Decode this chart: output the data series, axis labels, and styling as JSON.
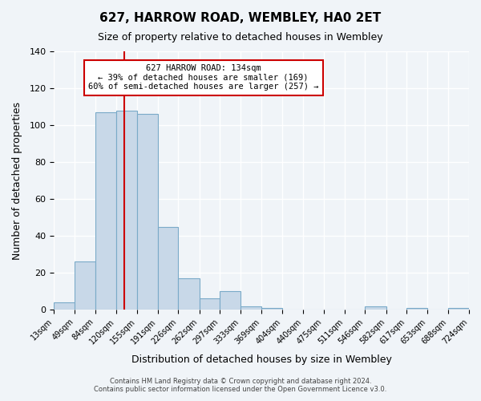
{
  "title": "627, HARROW ROAD, WEMBLEY, HA0 2ET",
  "subtitle": "Size of property relative to detached houses in Wembley",
  "xlabel": "Distribution of detached houses by size in Wembley",
  "ylabel": "Number of detached properties",
  "bar_color": "#c8d8e8",
  "bar_edge_color": "#7aaac8",
  "background_color": "#f0f4f8",
  "grid_color": "#ffffff",
  "bin_edges": [
    13,
    49,
    84,
    120,
    155,
    191,
    226,
    262,
    297,
    333,
    369,
    404,
    440,
    475,
    511,
    546,
    582,
    617,
    653,
    688,
    724
  ],
  "bin_labels": [
    "13sqm",
    "49sqm",
    "84sqm",
    "120sqm",
    "155sqm",
    "191sqm",
    "226sqm",
    "262sqm",
    "297sqm",
    "333sqm",
    "369sqm",
    "404sqm",
    "440sqm",
    "475sqm",
    "511sqm",
    "546sqm",
    "582sqm",
    "617sqm",
    "653sqm",
    "688sqm",
    "724sqm"
  ],
  "counts": [
    4,
    26,
    107,
    108,
    106,
    45,
    17,
    6,
    10,
    2,
    1,
    0,
    0,
    0,
    0,
    2,
    0,
    1,
    0,
    1
  ],
  "vline_x": 134,
  "vline_color": "#cc0000",
  "annotation_lines": [
    "627 HARROW ROAD: 134sqm",
    "← 39% of detached houses are smaller (169)",
    "60% of semi-detached houses are larger (257) →"
  ],
  "annotation_box_color": "#ffffff",
  "annotation_box_edge_color": "#cc0000",
  "ylim": [
    0,
    140
  ],
  "yticks": [
    0,
    20,
    40,
    60,
    80,
    100,
    120,
    140
  ],
  "footer_lines": [
    "Contains HM Land Registry data © Crown copyright and database right 2024.",
    "Contains public sector information licensed under the Open Government Licence v3.0."
  ]
}
